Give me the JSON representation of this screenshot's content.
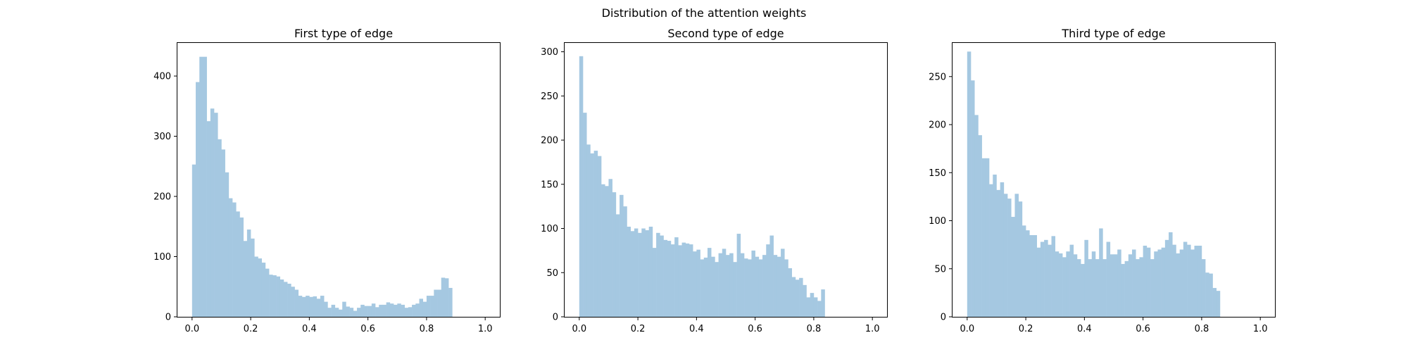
{
  "figure": {
    "title": "Distribution of the attention weights"
  },
  "style": {
    "bar_color": "#a5c8e1",
    "axis_color": "#000000",
    "background": "#ffffff"
  },
  "chart_data": [
    {
      "type": "bar",
      "title": "First type of edge",
      "xlabel": "",
      "ylabel": "",
      "xlim": [
        -0.05,
        1.05
      ],
      "ylim": [
        0,
        455
      ],
      "grid": false,
      "bin_edges_start": 0.0,
      "bin_width": 0.0125,
      "xticks": [
        0.0,
        0.2,
        0.4,
        0.6,
        0.8,
        1.0
      ],
      "xtick_labels": [
        "0.0",
        "0.2",
        "0.4",
        "0.6",
        "0.8",
        "1.0"
      ],
      "yticks": [
        0,
        100,
        200,
        300,
        400
      ],
      "ytick_labels": [
        "0",
        "100",
        "200",
        "300",
        "400"
      ],
      "values": [
        253,
        390,
        432,
        432,
        325,
        346,
        339,
        295,
        278,
        240,
        197,
        190,
        175,
        165,
        126,
        145,
        130,
        100,
        97,
        90,
        80,
        70,
        69,
        67,
        62,
        58,
        55,
        50,
        45,
        35,
        33,
        35,
        33,
        34,
        30,
        35,
        25,
        15,
        20,
        15,
        12,
        25,
        17,
        15,
        10,
        15,
        20,
        18,
        18,
        22,
        16,
        20,
        20,
        24,
        22,
        20,
        22,
        20,
        15,
        16,
        20,
        22,
        30,
        25,
        35,
        35,
        45,
        45,
        65,
        64,
        48
      ]
    },
    {
      "type": "bar",
      "title": "Second type of edge",
      "xlabel": "",
      "ylabel": "",
      "xlim": [
        -0.05,
        1.05
      ],
      "ylim": [
        0,
        310
      ],
      "grid": false,
      "bin_edges_start": 0.0,
      "bin_width": 0.0125,
      "xticks": [
        0.0,
        0.2,
        0.4,
        0.6,
        0.8,
        1.0
      ],
      "xtick_labels": [
        "0.0",
        "0.2",
        "0.4",
        "0.6",
        "0.8",
        "1.0"
      ],
      "yticks": [
        0,
        50,
        100,
        150,
        200,
        250,
        300
      ],
      "ytick_labels": [
        "0",
        "50",
        "100",
        "150",
        "200",
        "250",
        "300"
      ],
      "values": [
        295,
        231,
        195,
        185,
        188,
        182,
        150,
        148,
        156,
        141,
        116,
        138,
        125,
        102,
        97,
        100,
        95,
        100,
        98,
        102,
        78,
        95,
        92,
        87,
        86,
        82,
        90,
        81,
        84,
        83,
        82,
        74,
        76,
        65,
        67,
        78,
        68,
        62,
        72,
        77,
        70,
        72,
        62,
        94,
        72,
        66,
        65,
        75,
        68,
        65,
        70,
        82,
        92,
        70,
        68,
        77,
        65,
        55,
        45,
        42,
        44,
        36,
        22,
        27,
        22,
        18,
        31
      ]
    },
    {
      "type": "bar",
      "title": "Third type of edge",
      "xlabel": "",
      "ylabel": "",
      "xlim": [
        -0.05,
        1.05
      ],
      "ylim": [
        0,
        285
      ],
      "grid": false,
      "bin_edges_start": 0.0,
      "bin_width": 0.0125,
      "xticks": [
        0.0,
        0.2,
        0.4,
        0.6,
        0.8,
        1.0
      ],
      "xtick_labels": [
        "0.0",
        "0.2",
        "0.4",
        "0.6",
        "0.8",
        "1.0"
      ],
      "yticks": [
        0,
        50,
        100,
        150,
        200,
        250
      ],
      "ytick_labels": [
        "0",
        "50",
        "100",
        "150",
        "200",
        "250"
      ],
      "values": [
        276,
        246,
        210,
        189,
        165,
        165,
        138,
        148,
        132,
        140,
        128,
        123,
        104,
        128,
        120,
        95,
        90,
        85,
        85,
        72,
        78,
        80,
        75,
        84,
        68,
        66,
        62,
        68,
        75,
        65,
        60,
        55,
        80,
        60,
        68,
        60,
        92,
        60,
        78,
        65,
        65,
        70,
        55,
        58,
        65,
        70,
        60,
        62,
        74,
        72,
        60,
        68,
        70,
        72,
        80,
        88,
        75,
        66,
        70,
        78,
        75,
        70,
        74,
        74,
        60,
        46,
        45,
        30,
        27
      ]
    }
  ]
}
